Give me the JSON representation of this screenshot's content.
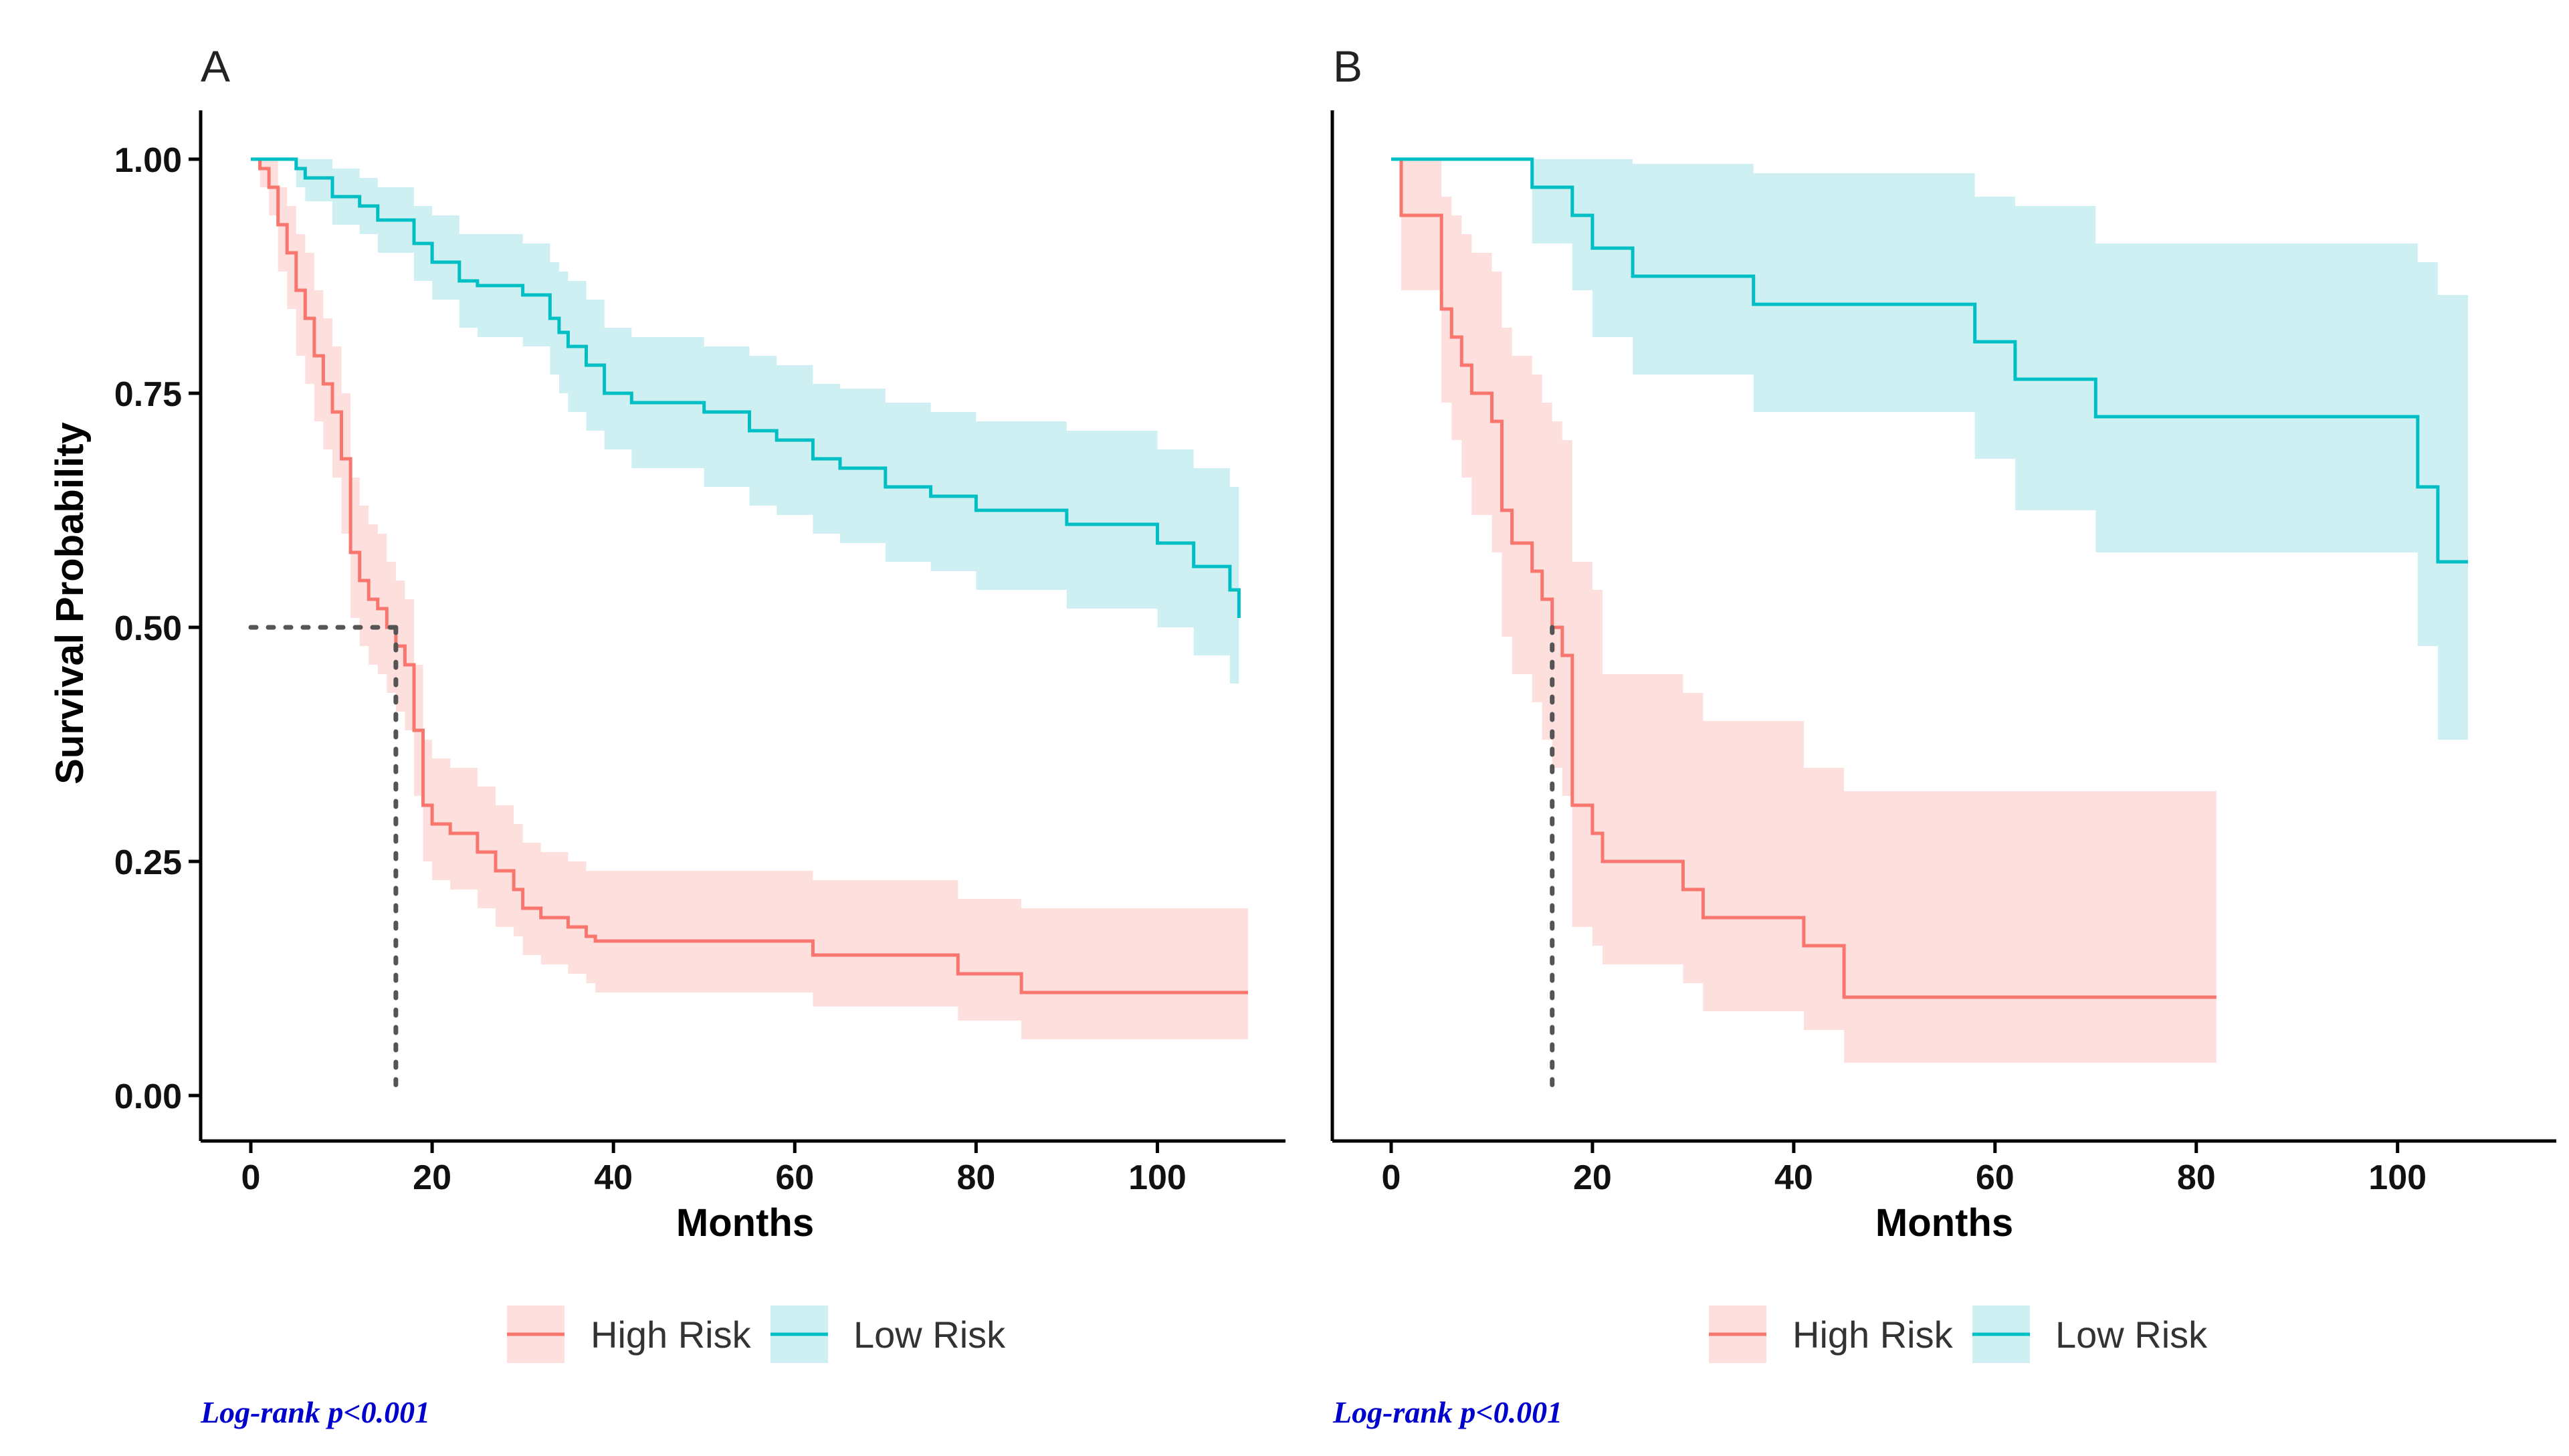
{
  "chart_data": [
    {
      "type": "line",
      "subtype": "kaplan-meier",
      "panel_label": "A",
      "xlabel": "Months",
      "ylabel": "Survival Probability",
      "xlim": [
        -5,
        115
      ],
      "ylim": [
        -0.05,
        1.05
      ],
      "xticks": [
        0,
        20,
        40,
        60,
        80,
        100
      ],
      "yticks": [
        0.0,
        0.25,
        0.5,
        0.75,
        1.0
      ],
      "xtick_labels": [
        "0",
        "20",
        "40",
        "60",
        "80",
        "100"
      ],
      "ytick_labels": [
        "0.00",
        "0.25",
        "0.50",
        "0.75",
        "1.00"
      ],
      "median_survival": {
        "x": 16,
        "y": 0.5
      },
      "annotation": "Log-rank p<0.001",
      "legend": [
        "High Risk",
        "Low Risk"
      ],
      "series": [
        {
          "name": "High Risk",
          "color": "#f8766d",
          "band_color": "#fde0de",
          "x": [
            0,
            1,
            2,
            3,
            4,
            5,
            6,
            7,
            8,
            9,
            10,
            11,
            12,
            13,
            14,
            15,
            16,
            17,
            18,
            19,
            20,
            22,
            25,
            27,
            29,
            30,
            32,
            35,
            37,
            38,
            62,
            78,
            85,
            110
          ],
          "y": [
            1.0,
            0.99,
            0.97,
            0.93,
            0.9,
            0.86,
            0.83,
            0.79,
            0.76,
            0.73,
            0.68,
            0.58,
            0.55,
            0.53,
            0.52,
            0.5,
            0.48,
            0.46,
            0.39,
            0.31,
            0.29,
            0.28,
            0.26,
            0.24,
            0.22,
            0.2,
            0.19,
            0.18,
            0.17,
            0.165,
            0.15,
            0.13,
            0.11,
            0.11
          ],
          "lower": [
            1.0,
            0.97,
            0.94,
            0.88,
            0.84,
            0.79,
            0.76,
            0.72,
            0.69,
            0.66,
            0.6,
            0.51,
            0.48,
            0.46,
            0.45,
            0.43,
            0.41,
            0.39,
            0.32,
            0.25,
            0.23,
            0.22,
            0.2,
            0.18,
            0.17,
            0.15,
            0.14,
            0.13,
            0.12,
            0.11,
            0.095,
            0.08,
            0.06,
            0.06
          ],
          "upper": [
            1.0,
            1.0,
            1.0,
            0.97,
            0.95,
            0.92,
            0.9,
            0.86,
            0.83,
            0.8,
            0.75,
            0.66,
            0.63,
            0.61,
            0.6,
            0.57,
            0.55,
            0.53,
            0.46,
            0.38,
            0.36,
            0.35,
            0.33,
            0.31,
            0.29,
            0.27,
            0.26,
            0.25,
            0.24,
            0.24,
            0.23,
            0.21,
            0.2,
            0.2
          ]
        },
        {
          "name": "Low Risk",
          "color": "#00bfc4",
          "band_color": "#cff0f2",
          "x": [
            0,
            5,
            6,
            9,
            12,
            14,
            18,
            20,
            23,
            25,
            30,
            33,
            34,
            35,
            37,
            39,
            42,
            50,
            55,
            58,
            62,
            65,
            70,
            75,
            80,
            90,
            100,
            104,
            108,
            109
          ],
          "y": [
            1.0,
            0.99,
            0.98,
            0.96,
            0.95,
            0.935,
            0.91,
            0.89,
            0.87,
            0.865,
            0.855,
            0.83,
            0.815,
            0.8,
            0.78,
            0.75,
            0.74,
            0.73,
            0.71,
            0.7,
            0.68,
            0.67,
            0.65,
            0.64,
            0.625,
            0.61,
            0.59,
            0.565,
            0.54,
            0.51
          ],
          "lower": [
            1.0,
            0.97,
            0.955,
            0.93,
            0.92,
            0.9,
            0.87,
            0.85,
            0.82,
            0.81,
            0.8,
            0.77,
            0.75,
            0.73,
            0.71,
            0.69,
            0.67,
            0.65,
            0.63,
            0.62,
            0.6,
            0.59,
            0.57,
            0.56,
            0.54,
            0.52,
            0.5,
            0.47,
            0.44,
            0.41
          ],
          "upper": [
            1.0,
            1.0,
            1.0,
            0.99,
            0.98,
            0.97,
            0.95,
            0.94,
            0.92,
            0.92,
            0.91,
            0.89,
            0.88,
            0.87,
            0.85,
            0.82,
            0.81,
            0.8,
            0.79,
            0.78,
            0.76,
            0.755,
            0.74,
            0.73,
            0.72,
            0.71,
            0.69,
            0.67,
            0.65,
            0.63
          ]
        }
      ]
    },
    {
      "type": "line",
      "subtype": "kaplan-meier",
      "panel_label": "B",
      "xlabel": "Months",
      "ylabel": "",
      "xlim": [
        -6,
        114
      ],
      "ylim": [
        -0.05,
        1.05
      ],
      "xticks": [
        0,
        20,
        40,
        60,
        80,
        100
      ],
      "xtick_labels": [
        "0",
        "20",
        "40",
        "60",
        "80",
        "100"
      ],
      "median_survival": {
        "x": 16,
        "y": 0.5
      },
      "annotation": "Log-rank p<0.001",
      "legend": [
        "High Risk",
        "Low Risk"
      ],
      "series": [
        {
          "name": "High Risk",
          "color": "#f8766d",
          "band_color": "#fde0de",
          "x": [
            0,
            1,
            5,
            6,
            7,
            8,
            10,
            11,
            12,
            14,
            15,
            16,
            17,
            18,
            20,
            21,
            29,
            31,
            41,
            45,
            82
          ],
          "y": [
            1.0,
            0.94,
            0.84,
            0.81,
            0.78,
            0.75,
            0.72,
            0.625,
            0.59,
            0.56,
            0.53,
            0.5,
            0.47,
            0.31,
            0.28,
            0.25,
            0.22,
            0.19,
            0.16,
            0.105,
            0.105
          ],
          "lower": [
            1.0,
            0.86,
            0.74,
            0.7,
            0.66,
            0.62,
            0.58,
            0.49,
            0.45,
            0.42,
            0.38,
            0.35,
            0.32,
            0.18,
            0.16,
            0.14,
            0.12,
            0.09,
            0.07,
            0.035,
            0.035
          ],
          "upper": [
            1.0,
            1.0,
            0.96,
            0.94,
            0.92,
            0.9,
            0.88,
            0.82,
            0.79,
            0.77,
            0.74,
            0.72,
            0.7,
            0.57,
            0.54,
            0.45,
            0.43,
            0.4,
            0.35,
            0.325,
            0.325
          ]
        },
        {
          "name": "Low Risk",
          "color": "#00bfc4",
          "band_color": "#cff0f2",
          "x": [
            0,
            14,
            18,
            20,
            24,
            36,
            58,
            62,
            70,
            102,
            104,
            107
          ],
          "y": [
            1.0,
            0.97,
            0.94,
            0.905,
            0.875,
            0.845,
            0.805,
            0.765,
            0.725,
            0.65,
            0.57,
            0.57
          ],
          "lower": [
            1.0,
            0.91,
            0.86,
            0.81,
            0.77,
            0.73,
            0.68,
            0.625,
            0.58,
            0.48,
            0.38,
            0.38
          ],
          "upper": [
            1.0,
            1.0,
            1.0,
            1.0,
            0.995,
            0.985,
            0.96,
            0.95,
            0.91,
            0.89,
            0.855,
            0.855
          ]
        }
      ]
    }
  ]
}
